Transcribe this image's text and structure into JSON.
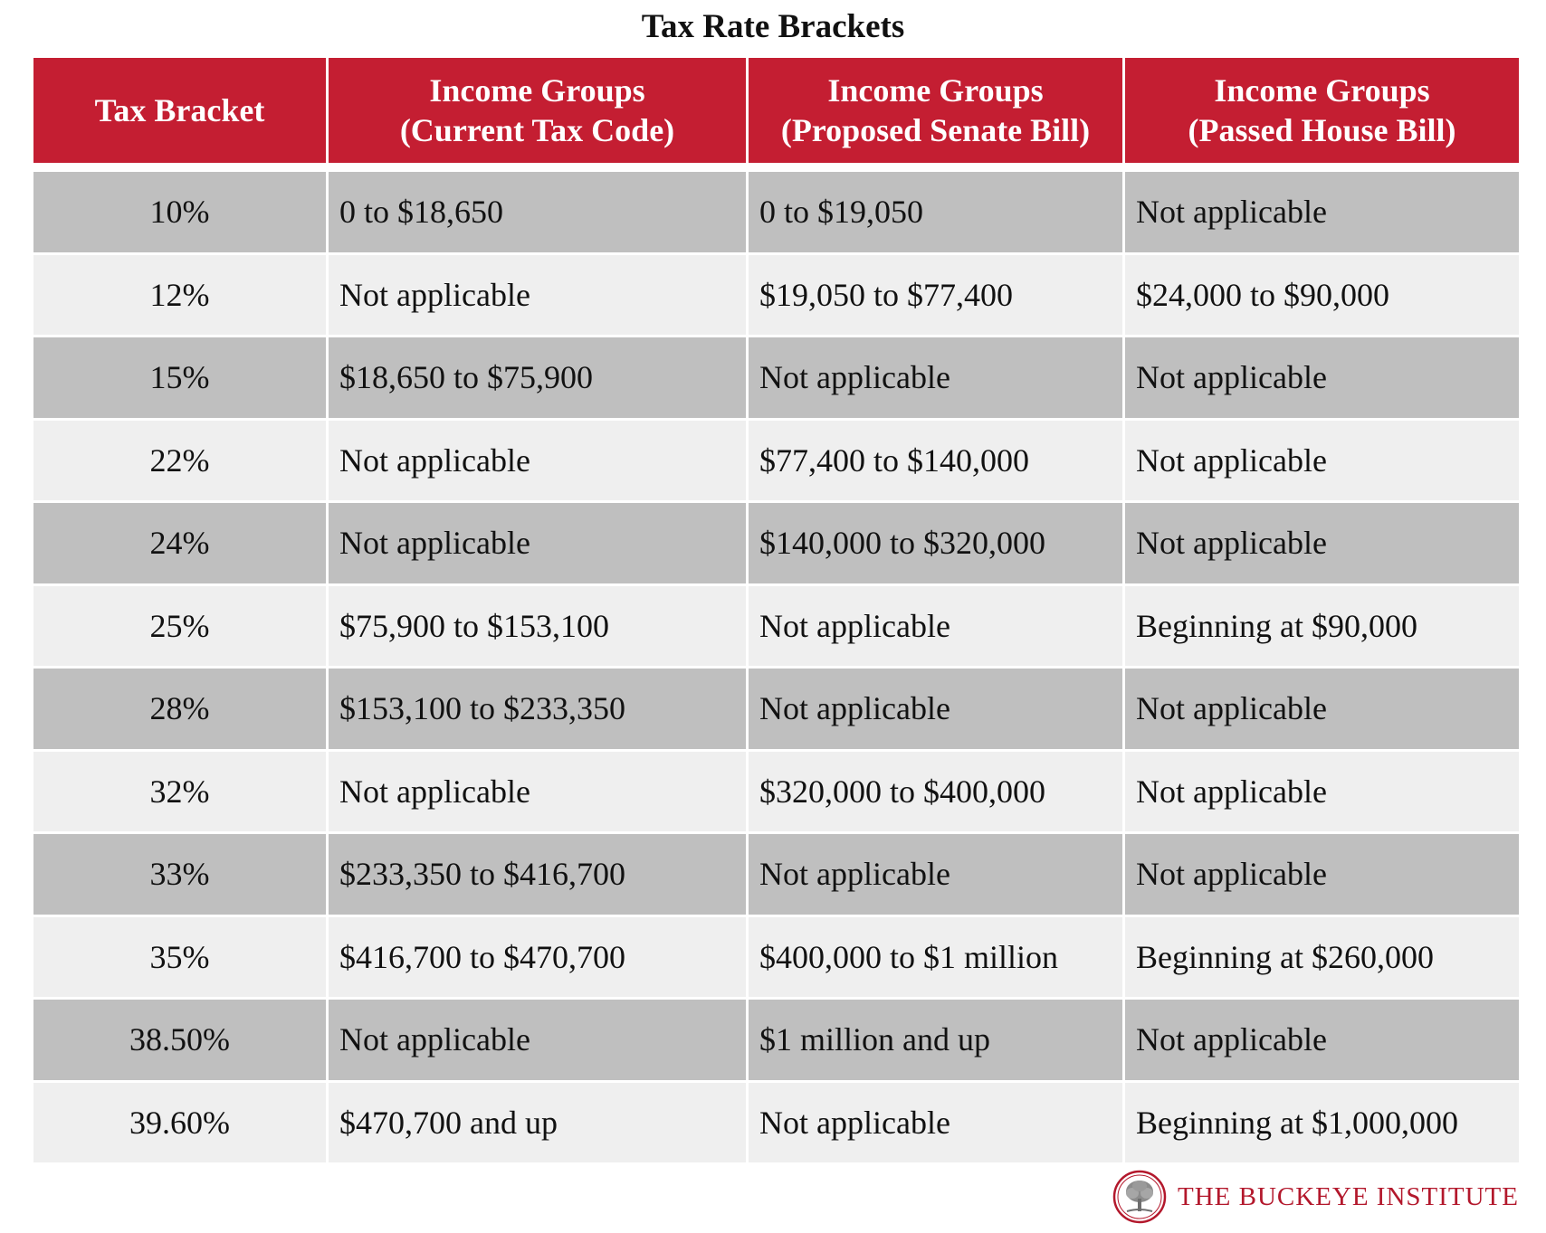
{
  "title": "Tax Rate Brackets",
  "colors": {
    "header_bg": "#c41e32",
    "shaded_row": "#bfbfbf",
    "light_row": "#efefef",
    "brand": "#b3182c"
  },
  "table": {
    "headers": [
      {
        "line1": "Tax Bracket",
        "line2": ""
      },
      {
        "line1": "Income Groups",
        "line2": "(Current Tax Code)"
      },
      {
        "line1": "Income Groups",
        "line2": "(Proposed Senate Bill)"
      },
      {
        "line1": "Income Groups",
        "line2": "(Passed House Bill)"
      }
    ],
    "rows": [
      {
        "bracket": "10%",
        "current": "0 to $18,650",
        "senate": "0 to $19,050",
        "house": "Not applicable"
      },
      {
        "bracket": "12%",
        "current": "Not applicable",
        "senate": "$19,050 to $77,400",
        "house": "$24,000 to $90,000"
      },
      {
        "bracket": "15%",
        "current": "$18,650 to $75,900",
        "senate": "Not applicable",
        "house": "Not applicable"
      },
      {
        "bracket": "22%",
        "current": "Not applicable",
        "senate": "$77,400 to $140,000",
        "house": "Not applicable"
      },
      {
        "bracket": "24%",
        "current": "Not applicable",
        "senate": "$140,000 to $320,000",
        "house": "Not applicable"
      },
      {
        "bracket": "25%",
        "current": "$75,900 to $153,100",
        "senate": "Not applicable",
        "house": "Beginning at $90,000"
      },
      {
        "bracket": "28%",
        "current": "$153,100 to $233,350",
        "senate": "Not applicable",
        "house": "Not applicable"
      },
      {
        "bracket": "32%",
        "current": "Not applicable",
        "senate": "$320,000 to $400,000",
        "house": "Not applicable"
      },
      {
        "bracket": "33%",
        "current": "$233,350 to $416,700",
        "senate": "Not applicable",
        "house": "Not applicable"
      },
      {
        "bracket": "35%",
        "current": "$416,700 to $470,700",
        "senate": "$400,000 to $1 million",
        "house": "Beginning at $260,000"
      },
      {
        "bracket": "38.50%",
        "current": "Not applicable",
        "senate": "$1 million and up",
        "house": "Not applicable"
      },
      {
        "bracket": "39.60%",
        "current": "$470,700 and up",
        "senate": "Not applicable",
        "house": "Beginning at $1,000,000"
      }
    ]
  },
  "footer": {
    "logo_text": "THE BUCKEYE INSTITUTE",
    "logo_icon": "buckeye-tree-seal"
  }
}
